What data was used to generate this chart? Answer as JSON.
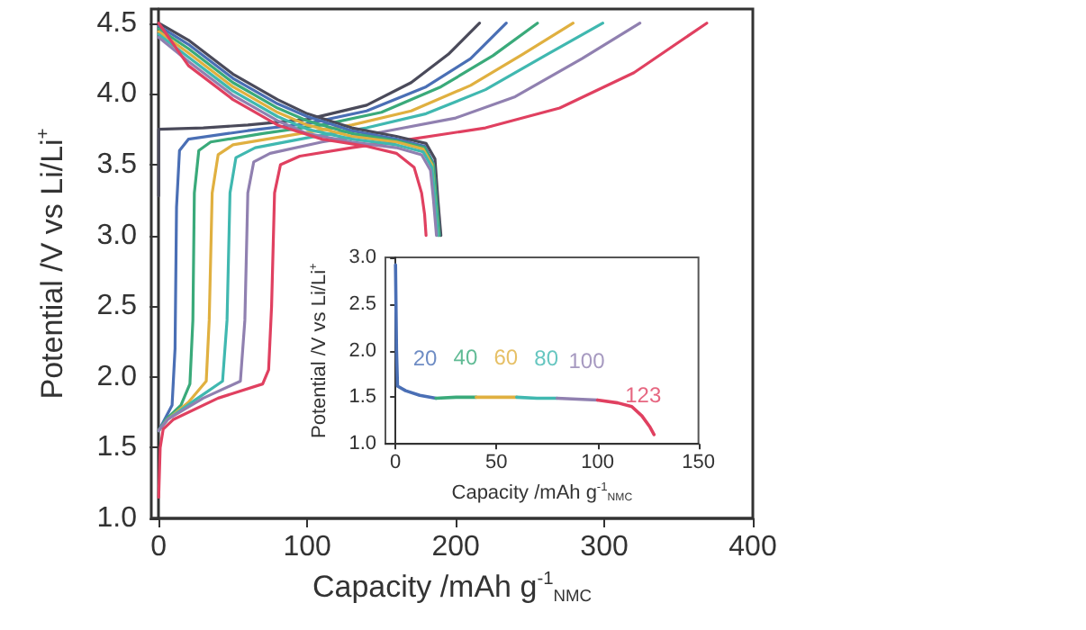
{
  "chart_data": [
    {
      "type": "line",
      "xlabel": "Capacity /mAh g$^{-1}$$_{NMC}$",
      "ylabel": "Potential /V vs Li/Li$^{+}$",
      "marker": "none",
      "xlim": [
        -5,
        400
      ],
      "ylim": [
        1,
        4.6
      ],
      "xticks": [
        0,
        100,
        200,
        300,
        400
      ],
      "yticks": [
        {
          "value": 1,
          "label": "1.0"
        },
        {
          "value": 1.5,
          "label": "1.5"
        },
        {
          "value": 2,
          "label": "2.0"
        },
        {
          "value": 2.5,
          "label": "2.5"
        },
        {
          "value": 3,
          "label": "3.0"
        },
        {
          "value": 3.5,
          "label": "3.5"
        },
        {
          "value": 4,
          "label": "4.0"
        },
        {
          "value": 4.5,
          "label": "4.5"
        }
      ],
      "series": [
        {
          "color": "#4a4a5a",
          "x": [
            0,
            0,
            30,
            60,
            100,
            140,
            170,
            195,
            216
          ],
          "values": [
            3.28,
            3.75,
            3.76,
            3.78,
            3.82,
            3.92,
            4.08,
            4.28,
            4.5
          ]
        },
        {
          "color": "#4a6fb5",
          "x": [
            0,
            4,
            9,
            11,
            12,
            14,
            20,
            60,
            100,
            140,
            180,
            210,
            234
          ],
          "values": [
            1.62,
            1.7,
            1.8,
            2.2,
            3.2,
            3.6,
            3.68,
            3.74,
            3.79,
            3.88,
            4.05,
            4.25,
            4.5
          ]
        },
        {
          "color": "#3aaa7a",
          "x": [
            0,
            5,
            15,
            21,
            23,
            24,
            27,
            35,
            70,
            110,
            150,
            190,
            225,
            255
          ],
          "values": [
            1.62,
            1.7,
            1.8,
            1.95,
            2.4,
            3.3,
            3.6,
            3.66,
            3.72,
            3.78,
            3.87,
            4.05,
            4.27,
            4.5
          ]
        },
        {
          "color": "#e0b040",
          "x": [
            0,
            6,
            20,
            32,
            34,
            36,
            40,
            50,
            90,
            130,
            170,
            210,
            245,
            279
          ],
          "values": [
            1.62,
            1.7,
            1.82,
            1.97,
            2.4,
            3.3,
            3.57,
            3.64,
            3.71,
            3.78,
            3.88,
            4.06,
            4.28,
            4.5
          ]
        },
        {
          "color": "#40b8b0",
          "x": [
            0,
            6,
            25,
            43,
            46,
            48,
            52,
            65,
            100,
            140,
            180,
            220,
            260,
            299
          ],
          "values": [
            1.62,
            1.7,
            1.84,
            1.97,
            2.4,
            3.3,
            3.55,
            3.62,
            3.69,
            3.76,
            3.86,
            4.03,
            4.27,
            4.5
          ]
        },
        {
          "color": "#9080b0",
          "x": [
            0,
            6,
            30,
            55,
            58,
            60,
            64,
            75,
            110,
            150,
            200,
            240,
            285,
            324
          ],
          "values": [
            1.62,
            1.7,
            1.85,
            1.97,
            2.4,
            3.3,
            3.52,
            3.58,
            3.66,
            3.73,
            3.83,
            3.98,
            4.25,
            4.5
          ]
        },
        {
          "color": "#e04060",
          "x": [
            0,
            1,
            3,
            10,
            40,
            70,
            74,
            76,
            78,
            82,
            95,
            130,
            170,
            220,
            270,
            320,
            369
          ],
          "values": [
            1.15,
            1.5,
            1.63,
            1.7,
            1.85,
            1.95,
            2.05,
            2.5,
            3.3,
            3.5,
            3.56,
            3.62,
            3.68,
            3.76,
            3.9,
            4.15,
            4.5
          ]
        },
        {
          "color": "#4a4a5a",
          "x": [
            0,
            20,
            50,
            80,
            100,
            130,
            160,
            180,
            186,
            188,
            190
          ],
          "values": [
            4.5,
            4.38,
            4.14,
            3.96,
            3.86,
            3.76,
            3.7,
            3.65,
            3.54,
            3.25,
            3.0
          ]
        },
        {
          "color": "#4a6fb5",
          "x": [
            0,
            20,
            50,
            80,
            100,
            130,
            160,
            179,
            185,
            187,
            189
          ],
          "values": [
            4.48,
            4.35,
            4.11,
            3.93,
            3.84,
            3.74,
            3.68,
            3.63,
            3.51,
            3.25,
            3.0
          ]
        },
        {
          "color": "#3aaa7a",
          "x": [
            0,
            20,
            50,
            80,
            100,
            130,
            160,
            179,
            185,
            187,
            189
          ],
          "values": [
            4.46,
            4.32,
            4.08,
            3.9,
            3.81,
            3.72,
            3.67,
            3.62,
            3.5,
            3.25,
            3.0
          ]
        },
        {
          "color": "#e0b040",
          "x": [
            0,
            20,
            50,
            80,
            100,
            130,
            160,
            178,
            184,
            186,
            188
          ],
          "values": [
            4.44,
            4.29,
            4.05,
            3.87,
            3.78,
            3.7,
            3.66,
            3.61,
            3.5,
            3.25,
            3.0
          ]
        },
        {
          "color": "#40b8b0",
          "x": [
            0,
            20,
            50,
            80,
            100,
            130,
            160,
            178,
            184,
            186,
            188
          ],
          "values": [
            4.42,
            4.26,
            4.02,
            3.84,
            3.75,
            3.68,
            3.64,
            3.59,
            3.48,
            3.25,
            3.0
          ]
        },
        {
          "color": "#9080b0",
          "x": [
            0,
            20,
            50,
            80,
            100,
            130,
            160,
            177,
            183,
            185,
            187
          ],
          "values": [
            4.4,
            4.23,
            3.99,
            3.81,
            3.72,
            3.66,
            3.62,
            3.57,
            3.46,
            3.25,
            3.0
          ]
        },
        {
          "color": "#e04060",
          "x": [
            0,
            20,
            50,
            80,
            110,
            140,
            160,
            172,
            177,
            179,
            180
          ],
          "values": [
            4.5,
            4.2,
            3.96,
            3.78,
            3.68,
            3.63,
            3.58,
            3.48,
            3.3,
            3.15,
            3.0
          ]
        }
      ]
    },
    {
      "type": "line",
      "xlabel": "Capacity /mAh g$^{-1}$$_{NMC}$",
      "ylabel": "Potential /V vs Li/Li$^{+}$",
      "marker": "none",
      "xlim": [
        -5,
        150
      ],
      "ylim": [
        1,
        3
      ],
      "xticks": [
        0,
        50,
        100,
        150
      ],
      "yticks": [
        {
          "value": 1,
          "label": "1.0"
        },
        {
          "value": 1.5,
          "label": "1.5"
        },
        {
          "value": 2,
          "label": "2.0"
        },
        {
          "value": 2.5,
          "label": "2.5"
        },
        {
          "value": 3,
          "label": "3.0"
        }
      ],
      "series": [
        {
          "color": "#4a6fb5",
          "x": [
            0,
            0.5,
            1,
            5,
            12,
            20
          ],
          "values": [
            2.92,
            2.0,
            1.62,
            1.57,
            1.52,
            1.49
          ]
        },
        {
          "color": "#3aaa7a",
          "x": [
            20,
            30,
            40
          ],
          "values": [
            1.49,
            1.5,
            1.5
          ]
        },
        {
          "color": "#e0b040",
          "x": [
            40,
            50,
            60
          ],
          "values": [
            1.5,
            1.5,
            1.5
          ]
        },
        {
          "color": "#40b8b0",
          "x": [
            60,
            70,
            80
          ],
          "values": [
            1.5,
            1.49,
            1.49
          ]
        },
        {
          "color": "#9080b0",
          "x": [
            80,
            90,
            100
          ],
          "values": [
            1.49,
            1.48,
            1.47
          ]
        },
        {
          "color": "#e04060",
          "x": [
            100,
            110,
            117,
            122,
            126,
            128
          ],
          "values": [
            1.47,
            1.44,
            1.4,
            1.3,
            1.18,
            1.1
          ]
        }
      ],
      "annotations": [
        "20",
        "40",
        "60",
        "80",
        "100",
        "123"
      ]
    }
  ]
}
